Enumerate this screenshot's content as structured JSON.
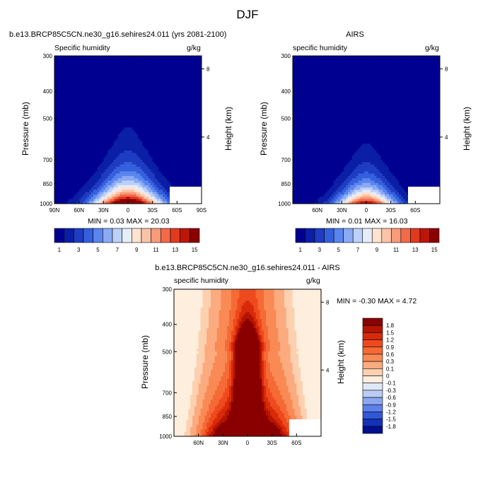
{
  "title": "DJF",
  "panels": [
    {
      "title": "b.e13.BRCP85C5CN.ne30_g16.sehires24.011 (yrs 2081-2100)",
      "left_label": "Specific humidity",
      "right_label": "g/kg",
      "ylabel": "Pressure (mb)",
      "ylabel_right": "Height (km)",
      "stats": "MIN =  0.03  MAX = 20.03"
    },
    {
      "title": "AIRS",
      "left_label": "specific humidity",
      "right_label": "g/kg",
      "ylabel": "Pressure (mb)",
      "ylabel_right": "Height (km)",
      "stats": "MIN =  0.01  MAX = 16.03"
    },
    {
      "title": "b.e13.BRCP85C5CN.ne30_g16.sehires24.011 - AIRS",
      "left_label": "specific humidity",
      "right_label": "g/kg",
      "ylabel": "Pressure (mb)",
      "ylabel_right": "Height (km)",
      "stats": "MIN = -0.30  MAX =  4.72"
    }
  ],
  "chart_data": [
    {
      "type": "heatmap",
      "title": "b.e13.BRCP85C5CN.ne30_g16.sehires24.011 (yrs 2081-2100)",
      "subtitle_left": "Specific humidity",
      "subtitle_right": "g/kg",
      "ylabel": "Pressure (mb)",
      "ylabel_right": "Height (km)",
      "x_ticks": [
        "90N",
        "60N",
        "30N",
        "0",
        "30S",
        "60S",
        "90S"
      ],
      "x_tick_values": [
        90,
        60,
        30,
        0,
        -30,
        -60,
        -90
      ],
      "xlim": [
        90,
        -90
      ],
      "y_ticks": [
        300,
        400,
        500,
        700,
        850,
        1000
      ],
      "ylim": [
        1000,
        300
      ],
      "y_scale": "log",
      "y_right_ticks": [
        "8",
        "4"
      ],
      "y_right_tick_values": [
        8,
        4
      ],
      "min": 0.03,
      "max": 20.03,
      "colorbar_labels": [
        "1",
        "3",
        "5",
        "7",
        "9",
        "11",
        "13",
        "15"
      ],
      "colorbar_colors": [
        "#000090",
        "#0a1fa5",
        "#1f3cc2",
        "#3560dd",
        "#5a84ee",
        "#8aaaf5",
        "#bcd0f8",
        "#e5ecfa",
        "#fde3d0",
        "#fcc3a6",
        "#f99a78",
        "#f26a4a",
        "#e03a1f",
        "#bc1608",
        "#8a0000"
      ],
      "peak_lat": 0,
      "low_level_max": 17,
      "decay_pressure": 160,
      "width_deg": 42
    },
    {
      "type": "heatmap",
      "title": "AIRS",
      "subtitle_left": "specific humidity",
      "subtitle_right": "g/kg",
      "ylabel": "Pressure (mb)",
      "ylabel_right": "Height (km)",
      "x_ticks": [
        "60N",
        "30N",
        "0",
        "30S",
        "60S"
      ],
      "x_tick_values": [
        60,
        30,
        0,
        -30,
        -60
      ],
      "xlim": [
        90,
        -90
      ],
      "y_ticks": [
        300,
        400,
        500,
        700,
        850,
        1000
      ],
      "ylim": [
        1000,
        300
      ],
      "y_scale": "log",
      "y_right_ticks": [
        "8",
        "4"
      ],
      "y_right_tick_values": [
        8,
        4
      ],
      "min": 0.01,
      "max": 16.03,
      "colorbar_labels": [
        "1",
        "3",
        "5",
        "7",
        "9",
        "11",
        "13",
        "15"
      ],
      "colorbar_colors": [
        "#000090",
        "#0a1fa5",
        "#1f3cc2",
        "#3560dd",
        "#5a84ee",
        "#8aaaf5",
        "#bcd0f8",
        "#e5ecfa",
        "#fde3d0",
        "#fcc3a6",
        "#f99a78",
        "#f26a4a",
        "#e03a1f",
        "#bc1608",
        "#8a0000"
      ],
      "peak_lat": 0,
      "low_level_max": 14,
      "decay_pressure": 140,
      "width_deg": 36
    },
    {
      "type": "heatmap",
      "title": "b.e13.BRCP85C5CN.ne30_g16.sehires24.011 - AIRS",
      "subtitle_left": "specific humidity",
      "subtitle_right": "g/kg",
      "ylabel": "Pressure (mb)",
      "ylabel_right": "Height (km)",
      "x_ticks": [
        "60N",
        "30N",
        "0",
        "30S",
        "60S"
      ],
      "x_tick_values": [
        60,
        30,
        0,
        -30,
        -60
      ],
      "xlim": [
        90,
        -90
      ],
      "y_ticks": [
        300,
        400,
        500,
        700,
        850,
        1000
      ],
      "ylim": [
        1000,
        300
      ],
      "y_scale": "log",
      "y_right_ticks": [
        "8",
        "4"
      ],
      "y_right_tick_values": [
        8,
        4
      ],
      "min": -0.3,
      "max": 4.72,
      "colorbar_labels": [
        "1.8",
        "1.5",
        "1.2",
        "0.9",
        "0.6",
        "0.3",
        "0.1",
        "0",
        "-0.1",
        "-0.3",
        "-0.6",
        "-0.9",
        "-1.2",
        "-1.5",
        "-1.8"
      ],
      "colorbar_colors": [
        "#8a0000",
        "#b31500",
        "#d82a0a",
        "#ee4a1e",
        "#f56a35",
        "#f98a55",
        "#fbab7f",
        "#fdd0b0",
        "#fdeede",
        "#dfe8f6",
        "#b9cdf4",
        "#8ca7f0",
        "#5d80ea",
        "#3158d8",
        "#1432b8",
        "#000f90"
      ]
    }
  ]
}
